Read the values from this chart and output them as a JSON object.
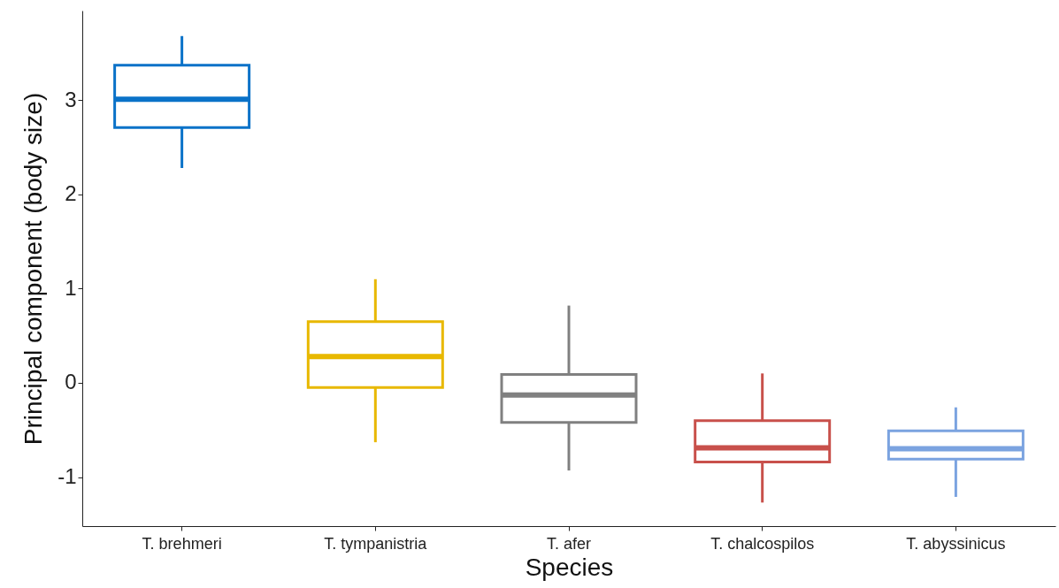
{
  "chart_data": {
    "type": "box",
    "xlabel": "Species",
    "ylabel": "Principal component (body size)",
    "categories": [
      "T. brehmeri",
      "T. tympanistria",
      "T. afer",
      "T. chalcospilos",
      "T. abyssinicus"
    ],
    "colors": [
      "#0a72c8",
      "#e8b800",
      "#808080",
      "#c8504b",
      "#7ba3e0"
    ],
    "boxes": [
      {
        "low": 2.28,
        "q1": 2.71,
        "median": 3.01,
        "q3": 3.37,
        "high": 3.68
      },
      {
        "low": -0.63,
        "q1": -0.05,
        "median": 0.28,
        "q3": 0.65,
        "high": 1.1
      },
      {
        "low": -0.93,
        "q1": -0.42,
        "median": -0.13,
        "q3": 0.09,
        "high": 0.82
      },
      {
        "low": -1.27,
        "q1": -0.84,
        "median": -0.69,
        "q3": -0.4,
        "high": 0.1
      },
      {
        "low": -1.21,
        "q1": -0.81,
        "median": -0.7,
        "q3": -0.51,
        "high": -0.26
      }
    ],
    "ylim": [
      -1.52,
      3.95
    ],
    "yticks": [
      -1,
      0,
      1,
      2,
      3
    ],
    "grid": false
  }
}
